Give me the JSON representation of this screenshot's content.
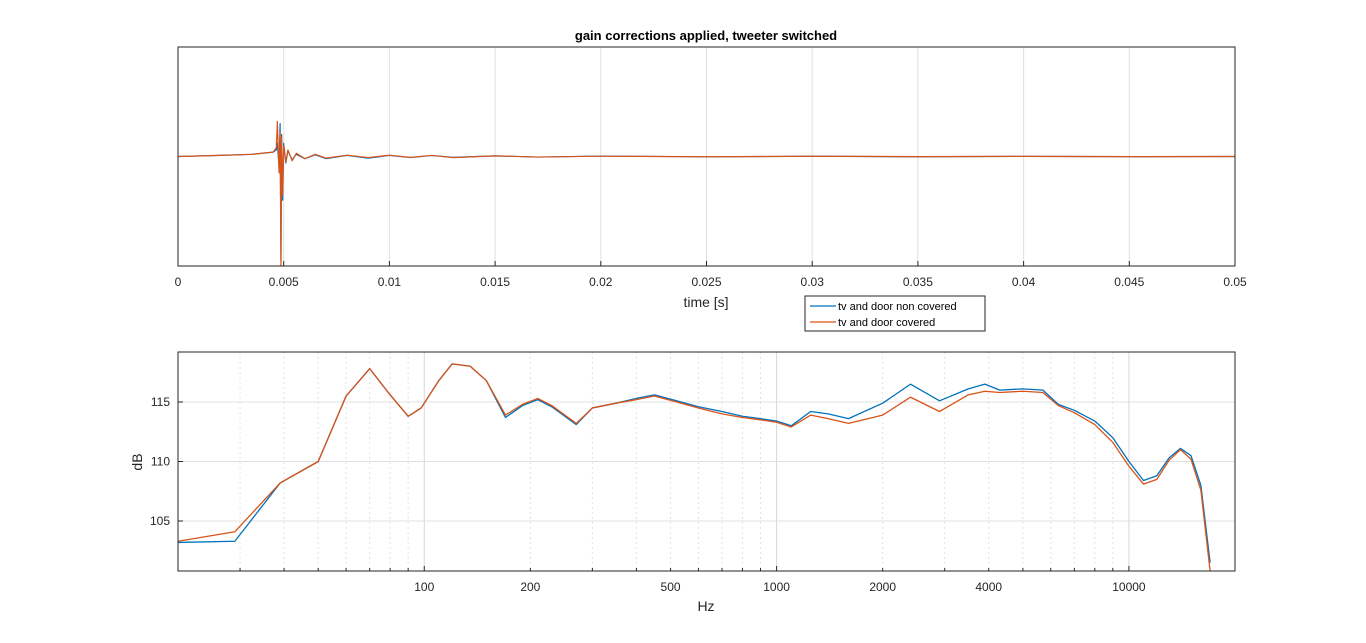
{
  "chart_data": [
    {
      "type": "line",
      "title": "gain corrections applied, tweeter switched",
      "xlabel": "time [s]",
      "ylabel": "",
      "xlim": [
        0,
        0.05
      ],
      "ylim": [
        -1.0,
        1.0
      ],
      "x_ticks": [
        0,
        0.005,
        0.01,
        0.015,
        0.02,
        0.025,
        0.03,
        0.035,
        0.04,
        0.045,
        0.05
      ],
      "x_tick_labels": [
        "0",
        "0.005",
        "0.01",
        "0.015",
        "0.02",
        "0.025",
        "0.03",
        "0.035",
        "0.04",
        "0.045",
        "0.05"
      ],
      "grid": true,
      "legend": "outside-bottom-right",
      "series": [
        {
          "name": "tv and door non covered",
          "color": "#0072BD",
          "x": [
            0,
            0.002,
            0.0035,
            0.0045,
            0.00465,
            0.0047,
            0.00478,
            0.00483,
            0.00487,
            0.0049,
            0.00495,
            0.005,
            0.0051,
            0.0052,
            0.0054,
            0.0056,
            0.006,
            0.0065,
            0.007,
            0.008,
            0.009,
            0.01,
            0.011,
            0.012,
            0.013,
            0.015,
            0.017,
            0.02,
            0.025,
            0.03,
            0.035,
            0.04,
            0.045,
            0.05
          ],
          "y": [
            0,
            0.01,
            0.02,
            0.04,
            0.06,
            0.12,
            -0.1,
            0.3,
            -0.95,
            0.2,
            -0.4,
            0.12,
            -0.06,
            0.05,
            -0.03,
            0.02,
            -0.02,
            0.015,
            -0.02,
            0.01,
            -0.015,
            0.01,
            -0.01,
            0.01,
            -0.008,
            0.006,
            -0.005,
            0.004,
            -0.003,
            0.002,
            -0.002,
            0.001,
            -0.001,
            0
          ]
        },
        {
          "name": "tv and door covered",
          "color": "#D95319",
          "x": [
            0,
            0.002,
            0.0035,
            0.0045,
            0.00465,
            0.0047,
            0.00478,
            0.00483,
            0.00487,
            0.0049,
            0.00495,
            0.005,
            0.0051,
            0.0052,
            0.0054,
            0.0056,
            0.006,
            0.0065,
            0.007,
            0.008,
            0.009,
            0.01,
            0.011,
            0.012,
            0.013,
            0.015,
            0.017,
            0.02,
            0.025,
            0.03,
            0.035,
            0.04,
            0.045,
            0.05
          ],
          "y": [
            0,
            0.01,
            0.02,
            0.04,
            0.08,
            0.32,
            -0.15,
            0.22,
            -1.0,
            0.18,
            -0.35,
            0.1,
            -0.05,
            0.06,
            -0.04,
            0.03,
            -0.02,
            0.02,
            -0.015,
            0.012,
            -0.01,
            0.012,
            -0.008,
            0.01,
            -0.01,
            0.006,
            -0.005,
            0.003,
            -0.002,
            0.002,
            -0.001,
            0.001,
            -0.001,
            0
          ]
        }
      ]
    },
    {
      "type": "line",
      "title": "",
      "xlabel": "Hz",
      "ylabel": "dB",
      "x_scale": "log",
      "xlim": [
        20,
        20000
      ],
      "ylim": [
        100.8,
        119.2
      ],
      "x_ticks": [
        100,
        200,
        500,
        1000,
        2000,
        4000,
        10000
      ],
      "x_tick_labels": [
        "100",
        "200",
        "500",
        "1000",
        "2000",
        "4000",
        "10000"
      ],
      "y_ticks": [
        105,
        110,
        115
      ],
      "y_tick_labels": [
        "105",
        "110",
        "115"
      ],
      "grid": true,
      "series": [
        {
          "name": "tv and door non covered",
          "color": "#0072BD",
          "x": [
            20,
            29,
            39,
            50,
            60,
            70,
            80,
            90,
            98,
            110,
            120,
            135,
            150,
            170,
            190,
            210,
            230,
            270,
            300,
            350,
            400,
            450,
            520,
            600,
            700,
            800,
            900,
            1000,
            1100,
            1250,
            1400,
            1600,
            2000,
            2400,
            2900,
            3500,
            3900,
            4300,
            5000,
            5700,
            6300,
            7000,
            8000,
            9000,
            10000,
            11000,
            12000,
            13000,
            14000,
            15000,
            16000,
            17000
          ],
          "y": [
            103.2,
            103.3,
            108.2,
            110.0,
            115.5,
            117.8,
            115.6,
            113.8,
            114.5,
            116.8,
            118.2,
            118.0,
            116.8,
            113.7,
            114.7,
            115.2,
            114.6,
            113.1,
            114.5,
            114.9,
            115.3,
            115.6,
            115.1,
            114.6,
            114.2,
            113.8,
            113.6,
            113.4,
            113.0,
            114.2,
            114.0,
            113.6,
            114.9,
            116.5,
            115.1,
            116.1,
            116.5,
            116.0,
            116.1,
            116.0,
            114.8,
            114.3,
            113.4,
            112.0,
            110.0,
            108.4,
            108.8,
            110.3,
            111.1,
            110.5,
            108.0,
            101.5
          ]
        },
        {
          "name": "tv and door covered",
          "color": "#D95319",
          "x": [
            20,
            29,
            39,
            50,
            60,
            70,
            80,
            90,
            98,
            110,
            120,
            135,
            150,
            170,
            190,
            210,
            230,
            270,
            300,
            350,
            400,
            450,
            520,
            600,
            700,
            800,
            900,
            1000,
            1100,
            1250,
            1400,
            1600,
            2000,
            2400,
            2900,
            3500,
            3900,
            4300,
            5000,
            5700,
            6300,
            7000,
            8000,
            9000,
            10000,
            11000,
            12000,
            13000,
            14000,
            15000,
            16000,
            17000
          ],
          "y": [
            103.3,
            104.1,
            108.2,
            110.0,
            115.5,
            117.8,
            115.6,
            113.8,
            114.5,
            116.8,
            118.2,
            118.0,
            116.8,
            113.9,
            114.8,
            115.3,
            114.7,
            113.2,
            114.5,
            114.9,
            115.2,
            115.5,
            115.0,
            114.5,
            114.0,
            113.7,
            113.5,
            113.3,
            112.9,
            113.9,
            113.6,
            113.2,
            113.9,
            115.4,
            114.2,
            115.6,
            115.9,
            115.8,
            115.9,
            115.8,
            114.7,
            114.1,
            113.1,
            111.6,
            109.6,
            108.1,
            108.5,
            110.1,
            111.0,
            110.2,
            107.6,
            100.8
          ]
        }
      ]
    }
  ]
}
